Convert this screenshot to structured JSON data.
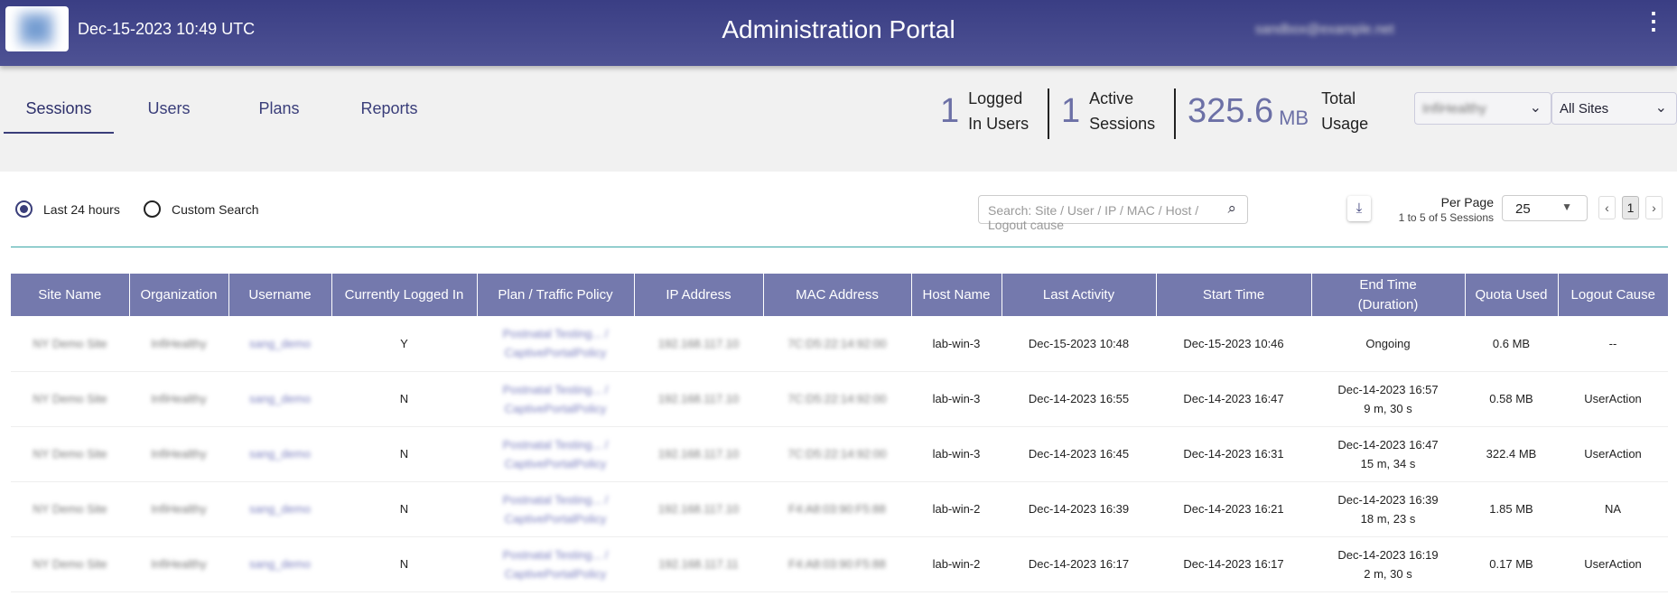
{
  "header": {
    "datetime": "Dec-15-2023 10:49 UTC",
    "title": "Administration Portal",
    "email": "sandbox@example.net",
    "menu_icon": "kebab-icon"
  },
  "tabs": [
    {
      "label": "Sessions",
      "active": true
    },
    {
      "label": "Users"
    },
    {
      "label": "Plans"
    },
    {
      "label": "Reports"
    }
  ],
  "stats": {
    "logged_in": {
      "value": "1",
      "label1": "Logged",
      "label2": "In Users"
    },
    "active": {
      "value": "1",
      "label1": "Active",
      "label2": "Sessions"
    },
    "usage": {
      "value": "325.6",
      "unit": "MB",
      "label1": "Total",
      "label2": "Usage"
    }
  },
  "filters": {
    "organization": "InfiHealthy",
    "site": "All Sites"
  },
  "range": {
    "last24": "Last 24 hours",
    "custom": "Custom Search",
    "selected": "last24"
  },
  "search": {
    "placeholder": "Search: Site / User / IP / MAC / Host / Logout cause"
  },
  "paging": {
    "per_page_label": "Per Page",
    "summary": "1 to 5 of 5 Sessions",
    "per_page": "25",
    "page": "1",
    "prev": "‹",
    "next": "›"
  },
  "colors": {
    "header": "#3f4388",
    "table_header": "#7479ad",
    "accent": "#6c70a6",
    "divider": "#3aa6a6"
  },
  "table": {
    "columns": [
      "Site Name",
      "Organization",
      "Username",
      "Currently Logged In",
      "Plan / Traffic Policy",
      "IP Address",
      "MAC Address",
      "Host Name",
      "Last Activity",
      "Start Time",
      "End Time\n(Duration)",
      "Quota Used",
      "Logout Cause"
    ],
    "rows": [
      {
        "site": "NY Demo Site",
        "org": "InfiHealthy",
        "user": "sang_demo",
        "logged": "Y",
        "plan1": "Postnatal Testing... /",
        "plan2": "CaptivePortalPolicy",
        "ip": "192.168.117.10",
        "mac": "7C:D5:22:14:92:00",
        "host": "lab-win-3",
        "last": "Dec-15-2023 10:48",
        "start": "Dec-15-2023 10:46",
        "end": "Ongoing",
        "dur": "",
        "quota": "0.6 MB",
        "cause": "--"
      },
      {
        "site": "NY Demo Site",
        "org": "InfiHealthy",
        "user": "sang_demo",
        "logged": "N",
        "plan1": "Postnatal Testing... /",
        "plan2": "CaptivePortalPolicy",
        "ip": "192.168.117.10",
        "mac": "7C:D5:22:14:92:00",
        "host": "lab-win-3",
        "last": "Dec-14-2023 16:55",
        "start": "Dec-14-2023 16:47",
        "end": "Dec-14-2023 16:57",
        "dur": "9 m, 30 s",
        "quota": "0.58 MB",
        "cause": "UserAction"
      },
      {
        "site": "NY Demo Site",
        "org": "InfiHealthy",
        "user": "sang_demo",
        "logged": "N",
        "plan1": "Postnatal Testing... /",
        "plan2": "CaptivePortalPolicy",
        "ip": "192.168.117.10",
        "mac": "7C:D5:22:14:92:00",
        "host": "lab-win-3",
        "last": "Dec-14-2023 16:45",
        "start": "Dec-14-2023 16:31",
        "end": "Dec-14-2023 16:47",
        "dur": "15 m, 34 s",
        "quota": "322.4 MB",
        "cause": "UserAction"
      },
      {
        "site": "NY Demo Site",
        "org": "InfiHealthy",
        "user": "sang_demo",
        "logged": "N",
        "plan1": "Postnatal Testing... /",
        "plan2": "CaptivePortalPolicy",
        "ip": "192.168.117.10",
        "mac": "F4:A8:03:90:F5:88",
        "host": "lab-win-2",
        "last": "Dec-14-2023 16:39",
        "start": "Dec-14-2023 16:21",
        "end": "Dec-14-2023 16:39",
        "dur": "18 m, 23 s",
        "quota": "1.85 MB",
        "cause": "NA"
      },
      {
        "site": "NY Demo Site",
        "org": "InfiHealthy",
        "user": "sang_demo",
        "logged": "N",
        "plan1": "Postnatal Testing... /",
        "plan2": "CaptivePortalPolicy",
        "ip": "192.168.117.11",
        "mac": "F4:A8:03:90:F5:88",
        "host": "lab-win-2",
        "last": "Dec-14-2023 16:17",
        "start": "Dec-14-2023 16:17",
        "end": "Dec-14-2023 16:19",
        "dur": "2 m, 30 s",
        "quota": "0.17 MB",
        "cause": "UserAction"
      }
    ]
  }
}
